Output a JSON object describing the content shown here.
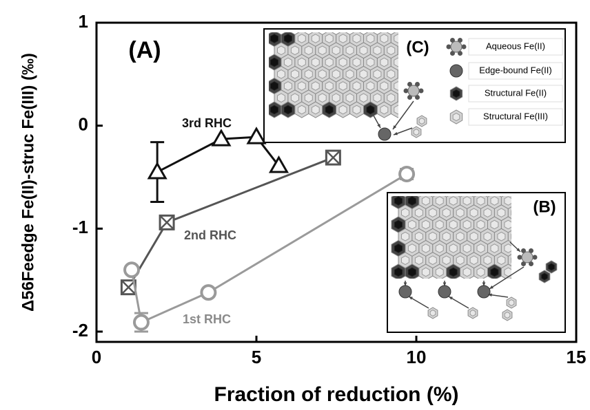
{
  "chart_data": {
    "type": "line",
    "title": "(A)",
    "xlabel": "Fraction of reduction (%)",
    "ylabel": "Δ56Feedge Fe(II)-struc Fe(III) (‰)",
    "xlim": [
      0,
      15
    ],
    "ylim": [
      -2.1,
      1
    ],
    "xticks": [
      0,
      5,
      10,
      15
    ],
    "yticks": [
      -2,
      -1,
      0,
      1
    ],
    "series": [
      {
        "name": "3rd RHC",
        "color": "#111111",
        "marker": "triangle",
        "x": [
          1.9,
          3.9,
          5.0,
          5.7
        ],
        "values": [
          -0.45,
          -0.13,
          -0.11,
          -0.39
        ],
        "errors": [
          0.29,
          null,
          null,
          null
        ]
      },
      {
        "name": "2nd RHC",
        "color": "#555555",
        "marker": "boxed-x",
        "x": [
          1.0,
          2.2,
          7.4
        ],
        "values": [
          -1.57,
          -0.94,
          -0.31
        ],
        "errors": [
          null,
          null,
          null
        ]
      },
      {
        "name": "1st RHC",
        "color": "#9a9a9a",
        "marker": "circle",
        "x": [
          1.1,
          1.4,
          3.5,
          9.7
        ],
        "values": [
          -1.4,
          -1.91,
          -1.62,
          -0.47
        ],
        "errors": [
          null,
          0.09,
          null,
          0.05
        ]
      }
    ],
    "insets": [
      {
        "label": "(C)",
        "legend": [
          "Aqueous Fe(II)",
          "Edge-bound Fe(II)",
          "Structural Fe(II)",
          "Structural Fe(III)"
        ]
      },
      {
        "label": "(B)"
      }
    ]
  }
}
